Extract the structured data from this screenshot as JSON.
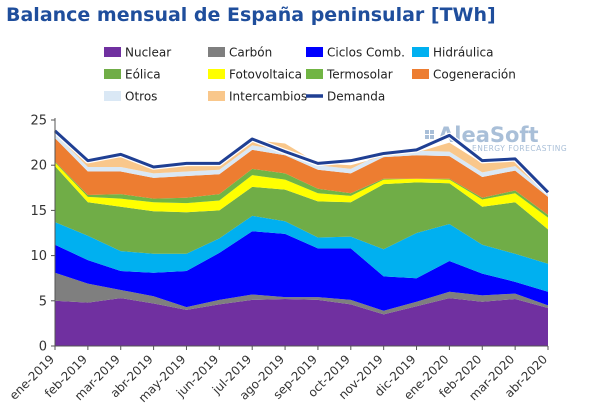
{
  "chart_data": {
    "type": "area",
    "title": "Balance mensual de España peninsular [TWh]",
    "xlabel": "",
    "ylabel": "",
    "ylim": [
      0,
      25
    ],
    "yticks": [
      0,
      5,
      10,
      15,
      20,
      25
    ],
    "grid": false,
    "legend_position": "top",
    "categories": [
      "ene-2019",
      "feb-2019",
      "mar-2019",
      "abr-2019",
      "may-2019",
      "jun-2019",
      "jul-2019",
      "ago-2019",
      "sep-2019",
      "oct-2019",
      "nov-2019",
      "dic-2019",
      "ene-2020",
      "feb-2020",
      "mar-2020",
      "abr-2020"
    ],
    "series": [
      {
        "name": "Nuclear",
        "color": "#7030a0",
        "values": [
          5.0,
          4.8,
          5.3,
          4.7,
          4.0,
          4.6,
          5.1,
          5.2,
          5.1,
          4.6,
          3.5,
          4.4,
          5.3,
          4.9,
          5.2,
          4.2
        ]
      },
      {
        "name": "Carbón",
        "color": "#7f7f7f",
        "values": [
          3.1,
          2.1,
          0.9,
          0.8,
          0.3,
          0.5,
          0.6,
          0.2,
          0.3,
          0.5,
          0.4,
          0.5,
          0.7,
          0.7,
          0.6,
          0.3
        ]
      },
      {
        "name": "Ciclos Comb.",
        "color": "#0000ff",
        "values": [
          3.1,
          2.6,
          2.1,
          2.6,
          4.0,
          5.2,
          7.0,
          7.0,
          5.4,
          5.7,
          3.8,
          2.6,
          3.4,
          2.4,
          1.3,
          1.5
        ]
      },
      {
        "name": "Hidráulica",
        "color": "#00b0f0",
        "values": [
          2.5,
          2.7,
          2.2,
          2.1,
          1.9,
          1.6,
          1.7,
          1.4,
          1.2,
          1.3,
          3.0,
          5.0,
          4.1,
          3.2,
          3.1,
          3.1
        ]
      },
      {
        "name": "Eólica",
        "color": "#70ad47",
        "values": [
          6.2,
          3.7,
          4.9,
          4.7,
          4.6,
          3.1,
          3.2,
          3.5,
          4.0,
          3.8,
          7.2,
          5.6,
          4.5,
          4.2,
          5.7,
          3.8
        ]
      },
      {
        "name": "Fotovoltaica",
        "color": "#ffff00",
        "values": [
          0.4,
          0.6,
          0.9,
          1.0,
          1.0,
          1.1,
          1.3,
          1.1,
          0.9,
          0.7,
          0.5,
          0.4,
          0.4,
          0.8,
          1.0,
          1.3
        ]
      },
      {
        "name": "Termosolar",
        "color": "#71b544",
        "values": [
          0.1,
          0.2,
          0.5,
          0.4,
          0.6,
          0.7,
          0.7,
          0.7,
          0.5,
          0.3,
          0.1,
          0.0,
          0.1,
          0.2,
          0.3,
          0.3
        ]
      },
      {
        "name": "Cogeneración",
        "color": "#ed7d31",
        "values": [
          2.6,
          2.6,
          2.5,
          2.3,
          2.4,
          2.2,
          2.1,
          2.0,
          2.1,
          2.2,
          2.4,
          2.6,
          2.5,
          2.3,
          2.2,
          2.0
        ]
      },
      {
        "name": "Otros",
        "color": "#dae8f5",
        "values": [
          0.5,
          0.5,
          0.5,
          0.5,
          0.5,
          0.5,
          0.5,
          0.5,
          0.5,
          0.5,
          0.5,
          0.5,
          0.5,
          0.5,
          0.5,
          0.3
        ]
      },
      {
        "name": "Intercambios",
        "color": "#f9c78b",
        "values": [
          0.3,
          0.6,
          1.1,
          0.7,
          0.6,
          0.6,
          0.6,
          0.8,
          0.2,
          0.4,
          -0.4,
          -0.2,
          1.0,
          1.0,
          0.6,
          0.0
        ]
      }
    ],
    "line_series": {
      "name": "Demanda",
      "color": "#1f3f93",
      "values": [
        23.8,
        20.5,
        21.2,
        19.8,
        20.2,
        20.2,
        22.9,
        21.5,
        20.2,
        20.5,
        21.3,
        21.7,
        23.3,
        20.5,
        20.7,
        17.0
      ]
    },
    "watermark": {
      "brand": "AleaSoft",
      "tagline": "ENERGY FORECASTING"
    }
  }
}
